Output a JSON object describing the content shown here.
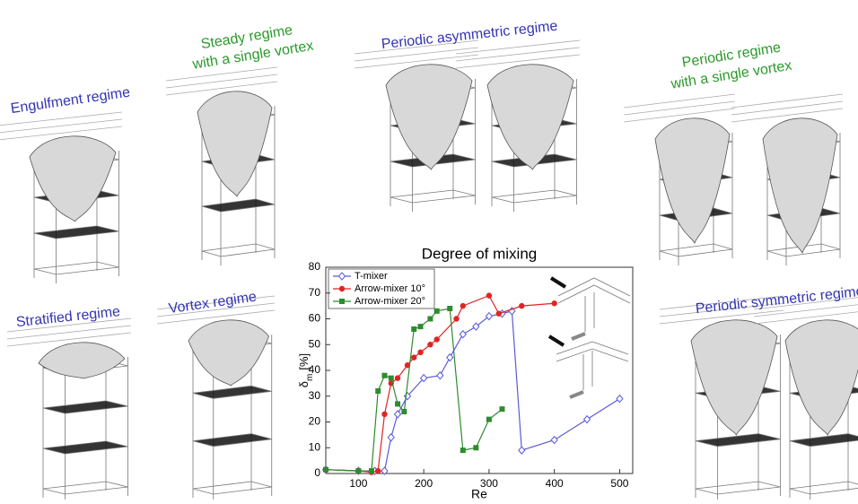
{
  "labels": [
    "Engulfment regime",
    "Steady regime",
    "with a single vortex",
    "Periodic asymmetric regime",
    "Periodic regime",
    "with a single vortex",
    "Stratified regime",
    "Vortex regime",
    "Periodic symmetric regime"
  ],
  "chart_data": {
    "type": "line",
    "title": "Degree of mixing",
    "xlabel": "Re",
    "ylabel": {
      "symbol": "δ",
      "subscript": "m",
      "unit": "[%]"
    },
    "xlim": [
      50,
      520
    ],
    "ylim": [
      0,
      80
    ],
    "xticks": [
      100,
      200,
      300,
      400,
      500
    ],
    "yticks": [
      0,
      10,
      20,
      30,
      40,
      50,
      60,
      70,
      80
    ],
    "legend": "upper left",
    "series": [
      {
        "name": "T-mixer",
        "color": "#5a5ad8",
        "marker": "diamond",
        "x": [
          50,
          100,
          125,
          140,
          150,
          160,
          175,
          200,
          225,
          240,
          260,
          280,
          300,
          320,
          335,
          350,
          400,
          450,
          500
        ],
        "values": [
          1.5,
          1,
          1,
          1,
          14,
          23,
          30,
          37,
          38,
          45,
          54,
          57,
          61,
          62,
          63,
          9,
          13,
          21,
          29
        ]
      },
      {
        "name": "Arrow-mixer 10°",
        "color": "#e02424",
        "marker": "circle",
        "x": [
          50,
          100,
          120,
          130,
          140,
          150,
          160,
          175,
          185,
          195,
          210,
          220,
          250,
          260,
          300,
          315,
          350,
          400
        ],
        "values": [
          1.5,
          1,
          0.5,
          1,
          23,
          35,
          37,
          42,
          45,
          47,
          50,
          52,
          60,
          65,
          69,
          62,
          65,
          66
        ]
      },
      {
        "name": "Arrow-mixer 20°",
        "color": "#2e8b2e",
        "marker": "square",
        "x": [
          50,
          100,
          120,
          130,
          140,
          150,
          160,
          170,
          185,
          195,
          210,
          220,
          240,
          260,
          280,
          300,
          320
        ],
        "values": [
          1.5,
          1,
          1,
          32,
          38,
          37,
          27,
          24,
          56,
          57,
          60,
          63,
          64,
          9,
          10,
          21,
          25
        ]
      }
    ]
  }
}
